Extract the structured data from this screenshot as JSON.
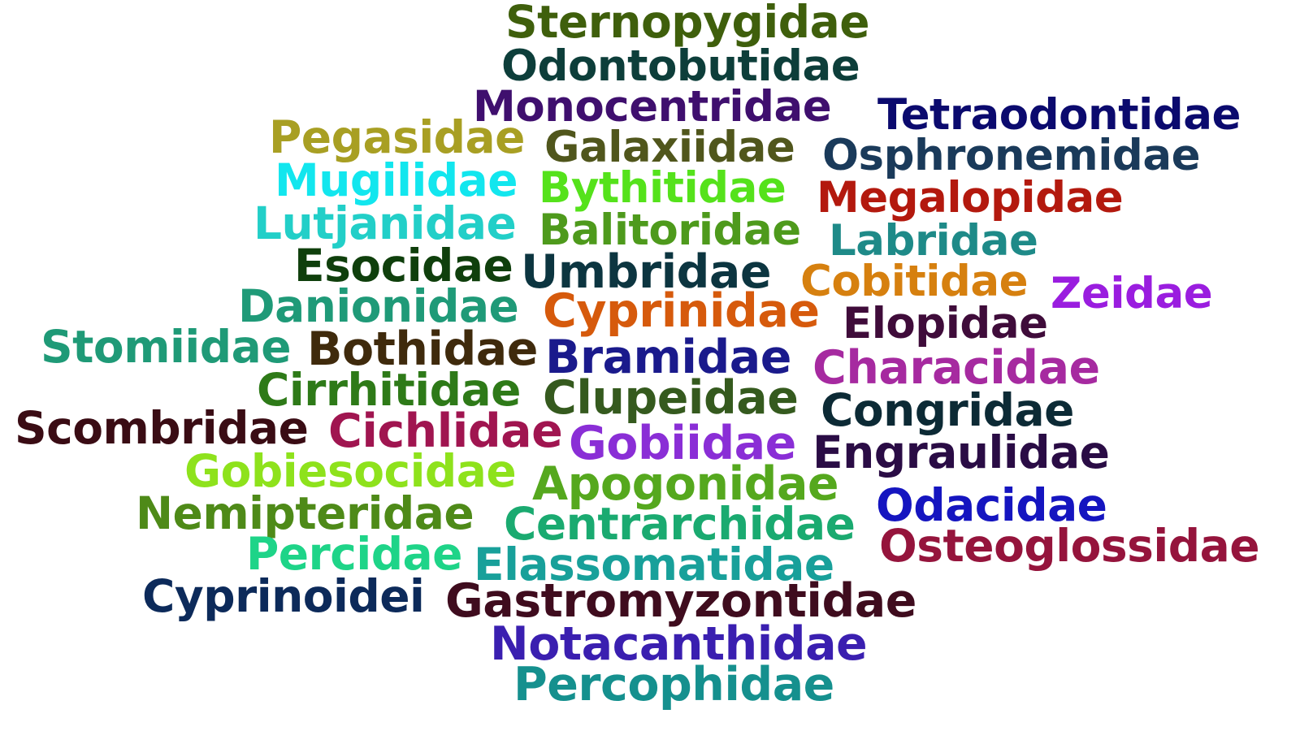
{
  "words": [
    {
      "text": "Sternopygidae",
      "color": "#3f5f0c"
    },
    {
      "text": "Odontobutidae",
      "color": "#0d3e3a"
    },
    {
      "text": "Monocentridae",
      "color": "#3f0f6e"
    },
    {
      "text": "Tetraodontidae",
      "color": "#0b0a6e"
    },
    {
      "text": "Pegasidae",
      "color": "#a89f23"
    },
    {
      "text": "Galaxiidae",
      "color": "#50561c"
    },
    {
      "text": "Osphronemidae",
      "color": "#1a3a5a"
    },
    {
      "text": "Mugilidae",
      "color": "#12e6ee"
    },
    {
      "text": "Bythitidae",
      "color": "#55e21b"
    },
    {
      "text": "Megalopidae",
      "color": "#b3190e"
    },
    {
      "text": "Lutjanidae",
      "color": "#22cfc8"
    },
    {
      "text": "Balitoridae",
      "color": "#4e9a1c"
    },
    {
      "text": "Labridae",
      "color": "#1e8a88"
    },
    {
      "text": "Esocidae",
      "color": "#0f3f0c"
    },
    {
      "text": "Umbridae",
      "color": "#0c3540"
    },
    {
      "text": "Cobitidae",
      "color": "#d6800f"
    },
    {
      "text": "Zeidae",
      "color": "#9a1ddf"
    },
    {
      "text": "Danionidae",
      "color": "#1f9a78"
    },
    {
      "text": "Cyprinidae",
      "color": "#d65a0c"
    },
    {
      "text": "Elopidae",
      "color": "#3f0c3a"
    },
    {
      "text": "Stomiidae",
      "color": "#1f9a77"
    },
    {
      "text": "Bothidae",
      "color": "#3f2a0c"
    },
    {
      "text": "Bramidae",
      "color": "#1a1a8c"
    },
    {
      "text": "Characidae",
      "color": "#a62aa0"
    },
    {
      "text": "Cirrhitidae",
      "color": "#2e7a18"
    },
    {
      "text": "Clupeidae",
      "color": "#355a1e"
    },
    {
      "text": "Congridae",
      "color": "#0c2a35"
    },
    {
      "text": "Scombridae",
      "color": "#3a0c14"
    },
    {
      "text": "Cichlidae",
      "color": "#a01550"
    },
    {
      "text": "Gobiidae",
      "color": "#8a2ed6"
    },
    {
      "text": "Engraulidae",
      "color": "#2a0c45"
    },
    {
      "text": "Gobiesocidae",
      "color": "#8ee21c"
    },
    {
      "text": "Apogonidae",
      "color": "#55a81e"
    },
    {
      "text": "Odacidae",
      "color": "#1515c0"
    },
    {
      "text": "Nemipteridae",
      "color": "#4e8a18"
    },
    {
      "text": "Centrarchidae",
      "color": "#1aaa70"
    },
    {
      "text": "Osteoglossidae",
      "color": "#95143c"
    },
    {
      "text": "Percidae",
      "color": "#1ed488"
    },
    {
      "text": "Elassomatidae",
      "color": "#18a09a"
    },
    {
      "text": "Cyprinoidei",
      "color": "#0c2a5a"
    },
    {
      "text": "Gastromyzontidae",
      "color": "#3f0c1e"
    },
    {
      "text": "Notacanthidae",
      "color": "#3a1fb0"
    },
    {
      "text": "Percophidae",
      "color": "#15908e"
    }
  ]
}
